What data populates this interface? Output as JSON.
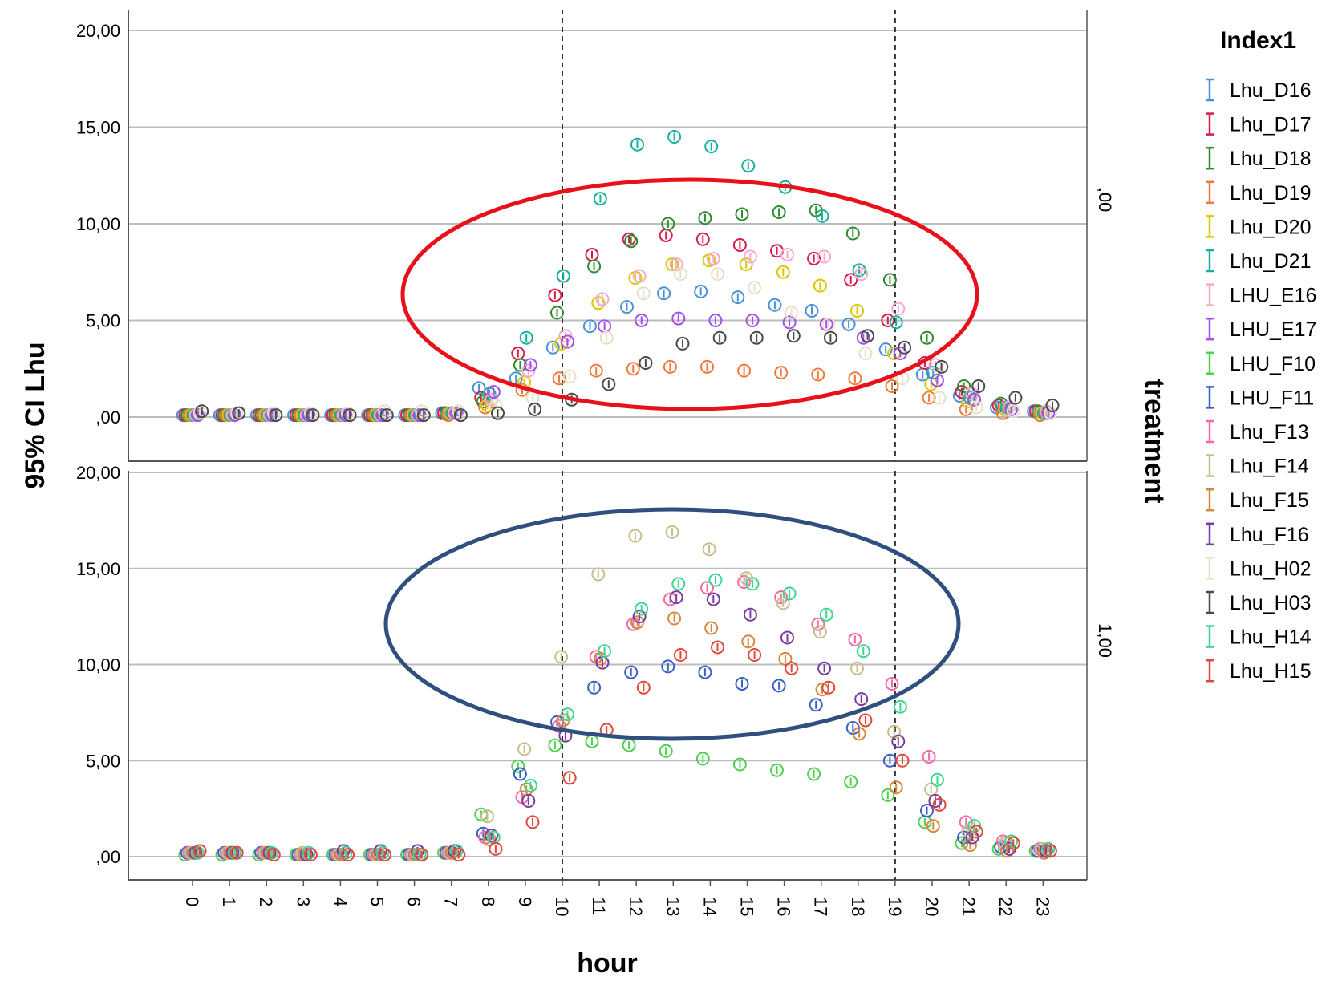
{
  "chart_data": {
    "type": "scatter",
    "xlabel": "hour",
    "ylabel": "95% CI Lhu",
    "facet_label": "treatment",
    "legend_title": "Index1",
    "legend_placement": "right",
    "grid": true,
    "x_categories": [
      "0",
      "1",
      "2",
      "3",
      "4",
      "5",
      "6",
      "7",
      "8",
      "9",
      "10",
      "11",
      "12",
      "13",
      "14",
      "15",
      "16",
      "17",
      "18",
      "19",
      "20",
      "21",
      "22",
      "23"
    ],
    "y_ticks": [
      ",00",
      "5,00",
      "10,00",
      "15,00",
      "20,00"
    ],
    "ylim": [
      0,
      20
    ],
    "reference_lines_x": [
      10,
      19
    ],
    "series_legend": [
      {
        "name": "Lhu_D16",
        "color": "#4a90d9"
      },
      {
        "name": "Lhu_D17",
        "color": "#d81b4a"
      },
      {
        "name": "Lhu_D18",
        "color": "#2e8b2e"
      },
      {
        "name": "Lhu_D19",
        "color": "#f07a3a"
      },
      {
        "name": "Lhu_D20",
        "color": "#d9c800"
      },
      {
        "name": "Lhu_D21",
        "color": "#19b0a0"
      },
      {
        "name": "LHU_E16",
        "color": "#f7a8d0"
      },
      {
        "name": "LHU_E17",
        "color": "#a44ef0"
      },
      {
        "name": "LHU_F10",
        "color": "#4fd14f"
      },
      {
        "name": "LHU_F11",
        "color": "#3a5fc8"
      },
      {
        "name": "Lhu_F13",
        "color": "#f76aa6"
      },
      {
        "name": "Lhu_F14",
        "color": "#c8be8c"
      },
      {
        "name": "Lhu_F15",
        "color": "#d6893e"
      },
      {
        "name": "Lhu_F16",
        "color": "#7a3aa0"
      },
      {
        "name": "Lhu_H02",
        "color": "#e6e0c8"
      },
      {
        "name": "Lhu_H03",
        "color": "#4a4a4a"
      },
      {
        "name": "Lhu_H14",
        "color": "#3dd68e"
      },
      {
        "name": "Lhu_H15",
        "color": "#e0483a"
      }
    ],
    "panels": [
      {
        "label": ",00",
        "series": [
          {
            "name": "Lhu_D16",
            "values": [
              0.1,
              0.1,
              0.1,
              0.1,
              0.1,
              0.1,
              0.1,
              0.2,
              1.5,
              2.0,
              3.6,
              4.7,
              5.7,
              6.4,
              6.5,
              6.2,
              5.8,
              5.5,
              4.8,
              3.5,
              2.2,
              1.1,
              0.5,
              0.3
            ]
          },
          {
            "name": "Lhu_D17",
            "values": [
              0.1,
              0.1,
              0.1,
              0.1,
              0.1,
              0.1,
              0.1,
              0.2,
              1.0,
              3.3,
              6.3,
              8.4,
              9.2,
              9.4,
              9.2,
              8.9,
              8.6,
              8.2,
              7.1,
              5.0,
              2.8,
              1.3,
              0.6,
              0.3
            ]
          },
          {
            "name": "Lhu_D18",
            "values": [
              0.1,
              0.1,
              0.1,
              0.1,
              0.1,
              0.1,
              0.1,
              0.2,
              0.8,
              2.7,
              5.4,
              7.8,
              9.1,
              10.0,
              10.3,
              10.5,
              10.6,
              10.7,
              9.5,
              7.1,
              4.1,
              1.6,
              0.7,
              0.3
            ]
          },
          {
            "name": "Lhu_D19",
            "values": [
              0.1,
              0.1,
              0.1,
              0.1,
              0.1,
              0.1,
              0.1,
              0.1,
              0.5,
              1.4,
              2.0,
              2.4,
              2.5,
              2.6,
              2.6,
              2.4,
              2.3,
              2.2,
              2.0,
              1.6,
              1.0,
              0.4,
              0.2,
              0.1
            ]
          },
          {
            "name": "Lhu_D20",
            "values": [
              0.1,
              0.1,
              0.1,
              0.1,
              0.1,
              0.1,
              0.1,
              0.2,
              0.6,
              1.8,
              3.8,
              5.9,
              7.2,
              7.9,
              8.1,
              7.9,
              7.5,
              6.8,
              5.5,
              3.3,
              1.7,
              0.8,
              0.4,
              0.2
            ]
          },
          {
            "name": "Lhu_D21",
            "values": [
              0.1,
              0.1,
              0.1,
              0.1,
              0.1,
              0.1,
              0.1,
              0.2,
              1.2,
              4.1,
              7.3,
              11.3,
              14.1,
              14.5,
              14.0,
              13.0,
              11.9,
              10.4,
              7.6,
              4.9,
              2.3,
              1.0,
              0.5,
              0.2
            ]
          },
          {
            "name": "LHU_E16",
            "values": [
              0.1,
              0.1,
              0.1,
              0.1,
              0.1,
              0.1,
              0.1,
              0.2,
              0.9,
              2.4,
              4.2,
              6.1,
              7.3,
              7.9,
              8.2,
              8.3,
              8.4,
              8.3,
              7.4,
              5.6,
              2.7,
              1.2,
              0.5,
              0.3
            ]
          },
          {
            "name": "LHU_E17",
            "values": [
              0.1,
              0.1,
              0.1,
              0.1,
              0.1,
              0.1,
              0.1,
              0.2,
              1.3,
              2.7,
              3.9,
              4.7,
              5.0,
              5.1,
              5.0,
              5.0,
              4.9,
              4.8,
              4.1,
              3.3,
              1.9,
              0.9,
              0.4,
              0.2
            ]
          },
          {
            "name": "Lhu_H02",
            "values": [
              0.2,
              0.2,
              0.2,
              0.2,
              0.2,
              0.3,
              0.3,
              0.3,
              0.6,
              1.0,
              2.1,
              4.1,
              6.4,
              7.4,
              7.4,
              6.7,
              5.4,
              4.8,
              3.3,
              2.0,
              1.0,
              0.5,
              0.3,
              0.2
            ]
          },
          {
            "name": "Lhu_H03",
            "values": [
              0.3,
              0.2,
              0.1,
              0.1,
              0.1,
              0.1,
              0.1,
              0.1,
              0.2,
              0.4,
              0.9,
              1.7,
              2.8,
              3.8,
              4.1,
              4.1,
              4.2,
              4.1,
              4.2,
              3.6,
              2.6,
              1.6,
              1.0,
              0.6
            ]
          }
        ]
      },
      {
        "label": "1,00",
        "series": [
          {
            "name": "LHU_F10",
            "values": [
              0.1,
              0.1,
              0.1,
              0.1,
              0.1,
              0.1,
              0.1,
              0.2,
              2.2,
              4.7,
              5.8,
              6.0,
              5.8,
              5.5,
              5.1,
              4.8,
              4.5,
              4.3,
              3.9,
              3.2,
              1.8,
              0.7,
              0.4,
              0.3
            ]
          },
          {
            "name": "LHU_F11",
            "values": [
              0.2,
              0.2,
              0.2,
              0.1,
              0.1,
              0.1,
              0.1,
              0.2,
              1.2,
              4.3,
              7.0,
              8.8,
              9.6,
              9.9,
              9.6,
              9.0,
              8.9,
              7.9,
              6.7,
              5.0,
              2.4,
              1.0,
              0.5,
              0.3
            ]
          },
          {
            "name": "Lhu_F13",
            "values": [
              0.2,
              0.2,
              0.2,
              0.1,
              0.1,
              0.1,
              0.1,
              0.2,
              1.0,
              3.1,
              6.8,
              10.4,
              12.1,
              13.4,
              14.0,
              14.3,
              13.5,
              12.1,
              11.3,
              9.0,
              5.2,
              1.8,
              0.8,
              0.4
            ]
          },
          {
            "name": "Lhu_F14",
            "values": [
              0.2,
              0.2,
              0.2,
              0.2,
              0.1,
              0.1,
              0.1,
              0.2,
              2.1,
              5.6,
              10.4,
              14.7,
              16.7,
              16.9,
              16.0,
              14.5,
              13.2,
              11.7,
              9.8,
              6.5,
              3.5,
              1.3,
              0.7,
              0.4
            ]
          },
          {
            "name": "Lhu_F15",
            "values": [
              0.2,
              0.2,
              0.2,
              0.1,
              0.1,
              0.1,
              0.1,
              0.2,
              0.9,
              3.5,
              7.1,
              10.3,
              12.2,
              12.4,
              11.9,
              11.2,
              10.3,
              8.7,
              6.4,
              3.6,
              1.6,
              0.6,
              0.3,
              0.2
            ]
          },
          {
            "name": "Lhu_F16",
            "values": [
              0.2,
              0.2,
              0.2,
              0.1,
              0.3,
              0.3,
              0.3,
              0.3,
              1.1,
              2.9,
              6.3,
              10.1,
              12.5,
              13.5,
              13.4,
              12.6,
              11.4,
              9.8,
              8.2,
              6.0,
              2.9,
              1.0,
              0.4,
              0.3
            ]
          },
          {
            "name": "Lhu_H14",
            "values": [
              0.2,
              0.2,
              0.2,
              0.2,
              0.2,
              0.2,
              0.1,
              0.3,
              1.0,
              3.7,
              7.4,
              10.7,
              12.9,
              14.2,
              14.4,
              14.2,
              13.7,
              12.6,
              10.7,
              7.8,
              4.0,
              1.6,
              0.8,
              0.4
            ]
          },
          {
            "name": "Lhu_H15",
            "values": [
              0.3,
              0.2,
              0.1,
              0.1,
              0.1,
              0.1,
              0.1,
              0.1,
              0.4,
              1.8,
              4.1,
              6.6,
              8.8,
              10.5,
              10.9,
              10.5,
              9.8,
              8.8,
              7.1,
              5.0,
              2.7,
              1.3,
              0.7,
              0.3
            ]
          }
        ]
      }
    ],
    "annotations": [
      {
        "shape": "ellipse",
        "panel": ",00",
        "color": "#e8101a"
      },
      {
        "shape": "ellipse",
        "panel": "1,00",
        "color": "#2f4f7f"
      }
    ]
  }
}
